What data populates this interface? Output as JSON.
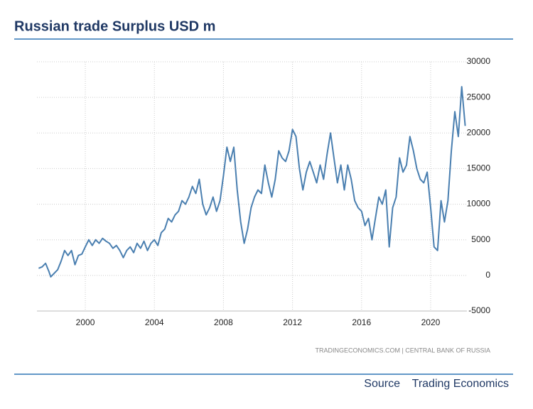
{
  "chart_data": {
    "type": "line",
    "title": "Russian trade Surplus USD m",
    "attribution": "TRADINGECONOMICS.COM | CENTRAL BANK OF RUSSIA",
    "source_label": "Source",
    "source": "Trading Economics",
    "xlim": [
      1997.2,
      2022.1
    ],
    "xticks": [
      2000,
      2004,
      2008,
      2012,
      2016,
      2020
    ],
    "ylim": [
      -5000,
      30000
    ],
    "yticks": [
      -5000,
      0,
      5000,
      10000,
      15000,
      20000,
      25000,
      30000
    ],
    "grid": true,
    "series": [
      {
        "color": "#4a7fb0",
        "x": [
          1997.3,
          1997.5,
          1997.7,
          1997.9,
          1998.0,
          1998.2,
          1998.4,
          1998.6,
          1998.8,
          1999.0,
          1999.2,
          1999.4,
          1999.6,
          1999.8,
          2000.0,
          2000.2,
          2000.4,
          2000.6,
          2000.8,
          2001.0,
          2001.2,
          2001.4,
          2001.6,
          2001.8,
          2002.0,
          2002.2,
          2002.4,
          2002.6,
          2002.8,
          2003.0,
          2003.2,
          2003.4,
          2003.6,
          2003.8,
          2004.0,
          2004.2,
          2004.4,
          2004.6,
          2004.8,
          2005.0,
          2005.2,
          2005.4,
          2005.6,
          2005.8,
          2006.0,
          2006.2,
          2006.4,
          2006.6,
          2006.8,
          2007.0,
          2007.2,
          2007.4,
          2007.6,
          2007.8,
          2008.0,
          2008.2,
          2008.4,
          2008.6,
          2008.8,
          2009.0,
          2009.2,
          2009.4,
          2009.6,
          2009.8,
          2010.0,
          2010.2,
          2010.4,
          2010.6,
          2010.8,
          2011.0,
          2011.2,
          2011.4,
          2011.6,
          2011.8,
          2012.0,
          2012.2,
          2012.4,
          2012.6,
          2012.8,
          2013.0,
          2013.2,
          2013.4,
          2013.6,
          2013.8,
          2014.0,
          2014.2,
          2014.4,
          2014.6,
          2014.8,
          2015.0,
          2015.2,
          2015.4,
          2015.6,
          2015.8,
          2016.0,
          2016.2,
          2016.4,
          2016.6,
          2016.8,
          2017.0,
          2017.2,
          2017.4,
          2017.6,
          2017.8,
          2018.0,
          2018.2,
          2018.4,
          2018.6,
          2018.8,
          2019.0,
          2019.2,
          2019.4,
          2019.6,
          2019.8,
          2020.0,
          2020.2,
          2020.4,
          2020.6,
          2020.8,
          2021.0,
          2021.2,
          2021.4,
          2021.6,
          2021.8,
          2022.0
        ],
        "values": [
          1000,
          1200,
          1700,
          500,
          -200,
          300,
          800,
          2000,
          3500,
          2800,
          3500,
          1500,
          2800,
          3000,
          4000,
          5000,
          4200,
          5000,
          4500,
          5200,
          4800,
          4500,
          3800,
          4200,
          3500,
          2500,
          3500,
          4000,
          3200,
          4500,
          3800,
          4800,
          3500,
          4500,
          5000,
          4200,
          6000,
          6500,
          8000,
          7500,
          8500,
          9000,
          10500,
          10000,
          11000,
          12500,
          11500,
          13500,
          10000,
          8500,
          9500,
          11000,
          9000,
          10500,
          14000,
          18000,
          16000,
          18000,
          12000,
          7500,
          4500,
          6500,
          9500,
          11000,
          12000,
          11500,
          15500,
          13000,
          11000,
          13500,
          17500,
          16500,
          16000,
          17500,
          20500,
          19500,
          15000,
          12000,
          14500,
          16000,
          14500,
          13000,
          15500,
          13500,
          17000,
          20000,
          16500,
          13000,
          15500,
          12000,
          15500,
          13500,
          10500,
          9500,
          9000,
          7000,
          8000,
          5000,
          8000,
          11000,
          10000,
          12000,
          4000,
          9500,
          11000,
          16500,
          14500,
          15500,
          19500,
          17500,
          15000,
          13500,
          13000,
          14500,
          9500,
          4000,
          3500,
          10500,
          7500,
          10500,
          17500,
          23000,
          19500,
          26500,
          21000
        ]
      }
    ]
  }
}
